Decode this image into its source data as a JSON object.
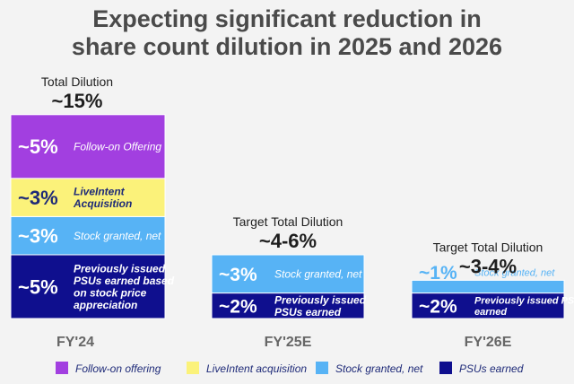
{
  "title_lines": [
    "Expecting significant reduction in",
    "share count dilution in 2025 and 2026"
  ],
  "colors": {
    "follow_on": "#a23fe0",
    "liveintent": "#fbf27a",
    "stock_granted": "#57b3f5",
    "psus": "#0f0f8e",
    "text_dark": "#1e1e1e",
    "label_gray": "#666666"
  },
  "chart_data": {
    "type": "bar",
    "stacked": true,
    "categories": [
      "FY'24",
      "FY'25E",
      "FY'26E"
    ],
    "totals": [
      {
        "label": "Total Dilution",
        "value": "~15%"
      },
      {
        "label": "Target Total Dilution",
        "value": "~4-6%"
      },
      {
        "label": "Target Total Dilution",
        "value": "~3-4%"
      }
    ],
    "series": [
      {
        "key": "psus",
        "name": "PSUs earned",
        "color": "#0f0f8e",
        "values": [
          5,
          2,
          2
        ]
      },
      {
        "key": "stock_granted",
        "name": "Stock granted, net",
        "color": "#57b3f5",
        "values": [
          3,
          3,
          1
        ]
      },
      {
        "key": "liveintent",
        "name": "LiveIntent acquisition",
        "color": "#fbf27a",
        "values": [
          3,
          0,
          0
        ]
      },
      {
        "key": "follow_on",
        "name": "Follow-on offering",
        "color": "#a23fe0",
        "values": [
          5,
          0,
          0
        ]
      }
    ],
    "segment_labels": [
      [
        {
          "pct": "~5%",
          "lines": [
            "Previously issued",
            "PSUs earned based",
            "on stock price",
            "appreciation"
          ]
        },
        {
          "pct": "~3%",
          "lines": [
            "Stock granted, net"
          ]
        },
        {
          "pct": "~3%",
          "lines": [
            "LiveIntent",
            "Acquisition"
          ]
        },
        {
          "pct": "~5%",
          "lines": [
            "Follow-on Offering"
          ]
        }
      ],
      [
        {
          "pct": "~2%",
          "lines": [
            "Previously issued",
            "PSUs earned"
          ]
        },
        {
          "pct": "~3%",
          "lines": [
            "Stock granted, net"
          ]
        }
      ],
      [
        {
          "pct": "~2%",
          "lines": [
            "Previously issued PSUs",
            "earned"
          ]
        },
        {
          "pct": "~1%",
          "lines": [
            "Stock granted, net"
          ]
        }
      ]
    ],
    "legend_position": "bottom"
  }
}
